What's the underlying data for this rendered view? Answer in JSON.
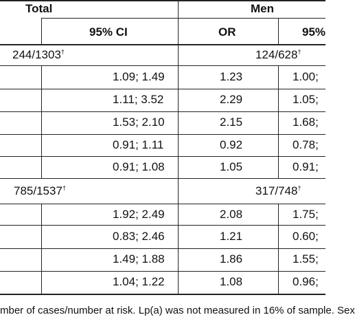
{
  "header": {
    "total_label": "Total",
    "men_label": "Men",
    "ci_label": "95% CI",
    "or_label": "OR",
    "ci_label_men_partial": "95%"
  },
  "groups": [
    {
      "total_count": "244/1303",
      "men_count": "124/628",
      "rows": [
        {
          "total_ci": "1.09; 1.49",
          "men_or": "1.23",
          "men_ci": "1.00;"
        },
        {
          "total_ci": "1.11; 3.52",
          "men_or": "2.29",
          "men_ci": "1.05;"
        },
        {
          "total_ci": "1.53; 2.10",
          "men_or": "2.15",
          "men_ci": "1.68;"
        },
        {
          "total_ci": "0.91; 1.11",
          "men_or": "0.92",
          "men_ci": "0.78;"
        },
        {
          "total_ci": "0.91; 1.08",
          "men_or": "1.05",
          "men_ci": "0.91;"
        }
      ]
    },
    {
      "total_count": "785/1537",
      "men_count": "317/748",
      "rows": [
        {
          "total_ci": "1.92; 2.49",
          "men_or": "2.08",
          "men_ci": "1.75;"
        },
        {
          "total_ci": "0.83; 2.46",
          "men_or": "1.21",
          "men_ci": "0.60;"
        },
        {
          "total_ci": "1.49; 1.88",
          "men_or": "1.86",
          "men_ci": "1.55;"
        },
        {
          "total_ci": "1.04; 1.22",
          "men_or": "1.08",
          "men_ci": "0.96;"
        }
      ]
    }
  ],
  "dagger": "†",
  "footnote": "mber of cases/number at risk. Lp(a) was not measured in 16% of sample. Sex"
}
